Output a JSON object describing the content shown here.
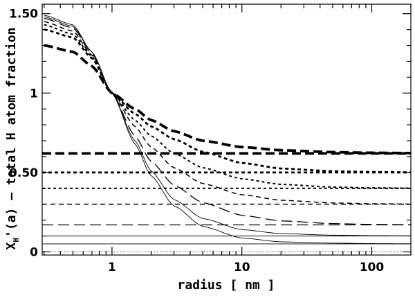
{
  "chart_data": {
    "type": "line",
    "title": "",
    "xlabel": "radius [ nm ]",
    "ylabel": "X",
    "ylabel_sub": "H",
    "ylabel_rest": "'(a) – total H atom fraction",
    "xscale": "log",
    "xlim": [
      0.29,
      200
    ],
    "ylim": [
      -0.02,
      1.56
    ],
    "xticks": [
      {
        "value": 1,
        "label": "1"
      },
      {
        "value": 10,
        "label": "10"
      },
      {
        "value": 100,
        "label": "100"
      }
    ],
    "yticks": [
      {
        "value": 0,
        "label": "0"
      },
      {
        "value": 0.5,
        "label": "0.50"
      },
      {
        "value": 1,
        "label": "1"
      },
      {
        "value": 1.5,
        "label": "1.50"
      }
    ],
    "grid": false,
    "legend": "none",
    "series": [
      {
        "kind": "profile",
        "style": "thin-solid",
        "plateau": 0.05,
        "x": [
          0.3,
          0.5,
          0.7,
          1,
          1.5,
          2,
          3,
          5,
          10,
          20,
          50,
          100,
          200
        ],
        "y": [
          1.49,
          1.43,
          1.26,
          1.0,
          0.68,
          0.48,
          0.29,
          0.16,
          0.087,
          0.063,
          0.055,
          0.052,
          0.051
        ]
      },
      {
        "kind": "profile",
        "style": "thin-solid",
        "plateau": 0.1,
        "x": [
          0.3,
          0.5,
          0.7,
          1,
          1.5,
          2,
          3,
          5,
          10,
          20,
          50,
          100,
          200
        ],
        "y": [
          1.48,
          1.42,
          1.26,
          1.0,
          0.7,
          0.51,
          0.33,
          0.21,
          0.14,
          0.115,
          0.105,
          0.102,
          0.101
        ]
      },
      {
        "kind": "profile",
        "style": "long-dash",
        "plateau": 0.17,
        "x": [
          0.3,
          0.5,
          0.7,
          1,
          1.5,
          2,
          3,
          5,
          10,
          20,
          50,
          100,
          200
        ],
        "y": [
          1.47,
          1.41,
          1.25,
          1.0,
          0.73,
          0.57,
          0.42,
          0.31,
          0.23,
          0.195,
          0.178,
          0.173,
          0.171
        ]
      },
      {
        "kind": "profile",
        "style": "dash",
        "plateau": 0.3,
        "x": [
          0.3,
          0.5,
          0.7,
          1,
          1.5,
          2,
          3,
          5,
          10,
          20,
          50,
          100,
          200
        ],
        "y": [
          1.45,
          1.39,
          1.24,
          1.0,
          0.79,
          0.66,
          0.53,
          0.43,
          0.36,
          0.325,
          0.308,
          0.303,
          0.301
        ]
      },
      {
        "kind": "profile",
        "style": "dot-dash",
        "plateau": 0.4,
        "x": [
          0.3,
          0.5,
          0.7,
          1,
          1.5,
          2,
          3,
          5,
          10,
          20,
          50,
          100,
          200
        ],
        "y": [
          1.43,
          1.37,
          1.23,
          1.0,
          0.83,
          0.73,
          0.62,
          0.53,
          0.46,
          0.425,
          0.408,
          0.403,
          0.401
        ]
      },
      {
        "kind": "profile",
        "style": "dot-dash-heavy",
        "plateau": 0.5,
        "x": [
          0.3,
          0.5,
          0.7,
          1,
          1.5,
          2,
          3,
          5,
          10,
          20,
          50,
          100,
          200
        ],
        "y": [
          1.4,
          1.35,
          1.22,
          1.0,
          0.87,
          0.79,
          0.71,
          0.63,
          0.56,
          0.525,
          0.508,
          0.503,
          0.501
        ]
      },
      {
        "kind": "profile",
        "style": "thick-dash",
        "plateau": 0.62,
        "x": [
          0.3,
          0.5,
          0.7,
          1,
          1.5,
          2,
          3,
          5,
          10,
          20,
          50,
          100,
          200
        ],
        "y": [
          1.3,
          1.26,
          1.17,
          1.0,
          0.9,
          0.83,
          0.76,
          0.7,
          0.66,
          0.64,
          0.628,
          0.624,
          0.622
        ]
      }
    ],
    "horizontal_lines": [
      {
        "y": 0.0,
        "style": "dotted"
      },
      {
        "y": 0.05,
        "style": "thin-solid"
      },
      {
        "y": 0.1,
        "style": "thin-solid"
      },
      {
        "y": 0.17,
        "style": "long-dash"
      },
      {
        "y": 0.3,
        "style": "dash"
      },
      {
        "y": 0.4,
        "style": "dot-dash"
      },
      {
        "y": 0.5,
        "style": "dot-dash-heavy"
      },
      {
        "y": 0.62,
        "style": "thick-dash"
      }
    ]
  }
}
